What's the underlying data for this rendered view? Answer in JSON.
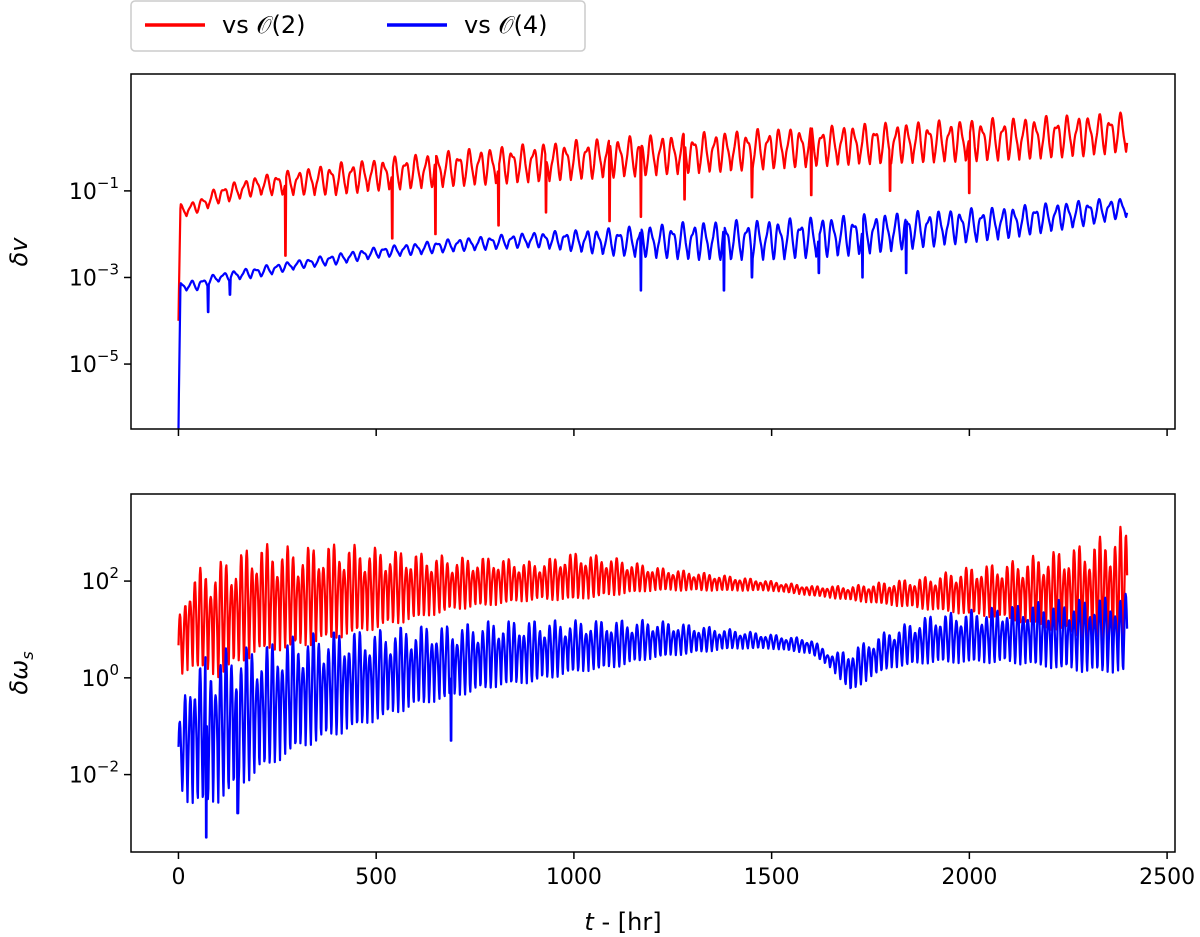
{
  "legend": {
    "entries": [
      {
        "label": "vs 𝒪(2)",
        "color": "#ff0000"
      },
      {
        "label": "vs 𝒪(4)",
        "color": "#0000ff"
      }
    ]
  },
  "colors": {
    "series_1": "#ff0000",
    "series_2": "#0000ff",
    "axis": "#000000"
  },
  "chart_data": [
    {
      "type": "line",
      "title": "",
      "xlabel": "",
      "ylabel": "δv",
      "yscale": "log",
      "xlim": [
        -120,
        2520
      ],
      "ylim_log10": [
        -6.5,
        1.7
      ],
      "xticks": [
        0,
        500,
        1000,
        1500,
        2000,
        2500
      ],
      "xtick_labels": [
        "",
        "",
        "",
        "",
        "",
        ""
      ],
      "yticks_log10": [
        -1,
        -3,
        -5
      ],
      "ytick_labels": [
        {
          "base": "10",
          "exp": "−1"
        },
        {
          "base": "10",
          "exp": "−3"
        },
        {
          "base": "10",
          "exp": "−5"
        }
      ],
      "series": [
        {
          "name": "vs 𝒪(2)",
          "color": "#ff0000",
          "x": [
            0,
            5,
            15,
            50,
            100,
            200,
            300,
            400,
            500,
            700,
            900,
            1100,
            1300,
            1500,
            1700,
            1900,
            2100,
            2300,
            2400
          ],
          "upper_log10": [
            -4.0,
            -1.3,
            -1.3,
            -1.2,
            -0.9,
            -0.65,
            -0.5,
            -0.35,
            -0.25,
            -0.05,
            0.1,
            0.25,
            0.35,
            0.45,
            0.55,
            0.62,
            0.7,
            0.78,
            0.82
          ],
          "lower_log10": [
            -4.0,
            -1.5,
            -1.6,
            -1.5,
            -1.3,
            -1.1,
            -1.1,
            -1.1,
            -1.0,
            -0.9,
            -0.8,
            -0.7,
            -0.6,
            -0.5,
            -0.4,
            -0.35,
            -0.3,
            -0.2,
            -0.1
          ],
          "period_hr": 27,
          "dips": [
            [
              270,
              -2.5
            ],
            [
              540,
              -2.1
            ],
            [
              650,
              -2.0
            ],
            [
              810,
              -1.8
            ],
            [
              930,
              -1.5
            ],
            [
              1090,
              -1.7
            ],
            [
              1170,
              -1.6
            ],
            [
              1280,
              -1.2
            ],
            [
              1450,
              -1.15
            ],
            [
              1600,
              -1.1
            ],
            [
              1800,
              -1.0
            ],
            [
              2000,
              -1.05
            ]
          ]
        },
        {
          "name": "vs 𝒪(4)",
          "color": "#0000ff",
          "x": [
            0,
            5,
            15,
            50,
            100,
            200,
            300,
            400,
            500,
            700,
            900,
            1100,
            1300,
            1500,
            1700,
            1900,
            2100,
            2300,
            2400
          ],
          "upper_log10": [
            -6.5,
            -3.1,
            -3.1,
            -3.05,
            -2.9,
            -2.75,
            -2.6,
            -2.45,
            -2.3,
            -2.1,
            -1.95,
            -1.85,
            -1.7,
            -1.65,
            -1.55,
            -1.45,
            -1.35,
            -1.2,
            -1.15
          ],
          "lower_log10": [
            -6.5,
            -3.3,
            -3.3,
            -3.3,
            -3.1,
            -3.0,
            -2.8,
            -2.7,
            -2.55,
            -2.4,
            -2.3,
            -2.5,
            -2.6,
            -2.6,
            -2.5,
            -2.3,
            -2.1,
            -1.8,
            -1.6
          ],
          "period_hr": 27,
          "dips": [
            [
              75,
              -3.8
            ],
            [
              130,
              -3.4
            ],
            [
              1170,
              -3.3
            ],
            [
              1380,
              -3.3
            ],
            [
              1450,
              -3.0
            ],
            [
              1620,
              -2.9
            ],
            [
              1730,
              -3.0
            ],
            [
              1840,
              -2.9
            ]
          ]
        }
      ]
    },
    {
      "type": "line",
      "title": "",
      "xlabel": "t - [hr]",
      "ylabel": "δω_s",
      "yscale": "log",
      "xlim": [
        -120,
        2520
      ],
      "ylim_log10": [
        -3.6,
        3.8
      ],
      "xticks": [
        0,
        500,
        1000,
        1500,
        2000,
        2500
      ],
      "xtick_labels": [
        "0",
        "500",
        "1000",
        "1500",
        "2000",
        "2500"
      ],
      "yticks_log10": [
        2,
        0,
        -2
      ],
      "ytick_labels": [
        {
          "base": "10",
          "exp": "2"
        },
        {
          "base": "10",
          "exp": "0"
        },
        {
          "base": "10",
          "exp": "−2"
        }
      ],
      "series": [
        {
          "name": "vs 𝒪(2)",
          "color": "#ff0000",
          "x": [
            0,
            30,
            100,
            200,
            300,
            400,
            500,
            600,
            700,
            800,
            900,
            1000,
            1100,
            1200,
            1300,
            1400,
            1500,
            1600,
            1700,
            1800,
            1900,
            2000,
            2100,
            2200,
            2300,
            2400
          ],
          "upper_log10": [
            1.2,
            2.2,
            2.4,
            2.8,
            2.7,
            2.8,
            2.7,
            2.6,
            2.5,
            2.5,
            2.4,
            2.6,
            2.5,
            2.3,
            2.2,
            2.1,
            2.0,
            1.9,
            1.9,
            2.0,
            2.1,
            2.3,
            2.4,
            2.6,
            2.8,
            3.2
          ],
          "lower_log10": [
            0.0,
            0.2,
            0.0,
            0.5,
            0.6,
            0.8,
            1.0,
            1.2,
            1.4,
            1.5,
            1.6,
            1.6,
            1.7,
            1.8,
            1.8,
            1.8,
            1.8,
            1.7,
            1.6,
            1.5,
            1.4,
            1.3,
            1.2,
            1.0,
            0.8,
            0.5
          ],
          "period_hr": 13,
          "dips": []
        },
        {
          "name": "vs 𝒪(4)",
          "color": "#0000ff",
          "x": [
            0,
            30,
            100,
            200,
            300,
            400,
            500,
            600,
            700,
            800,
            900,
            1000,
            1100,
            1200,
            1300,
            1400,
            1500,
            1600,
            1650,
            1700,
            1750,
            1800,
            1900,
            2000,
            2100,
            2200,
            2300,
            2400
          ],
          "upper_log10": [
            -1.0,
            0.3,
            0.6,
            0.7,
            0.9,
            1.0,
            1.0,
            1.1,
            1.1,
            1.2,
            1.2,
            1.2,
            1.2,
            1.2,
            1.1,
            1.0,
            0.9,
            0.8,
            0.5,
            0.6,
            0.8,
            1.0,
            1.3,
            1.4,
            1.5,
            1.6,
            1.65,
            1.75
          ],
          "lower_log10": [
            -2.2,
            -2.7,
            -2.6,
            -2.0,
            -1.5,
            -1.2,
            -0.9,
            -0.6,
            -0.4,
            -0.2,
            -0.1,
            0.1,
            0.2,
            0.4,
            0.5,
            0.6,
            0.6,
            0.5,
            0.2,
            -0.3,
            0.0,
            0.2,
            0.3,
            0.3,
            0.3,
            0.2,
            0.1,
            0.1
          ],
          "period_hr": 13,
          "dips": [
            [
              70,
              -3.3
            ],
            [
              150,
              -2.8
            ],
            [
              690,
              -1.3
            ]
          ]
        }
      ]
    }
  ]
}
